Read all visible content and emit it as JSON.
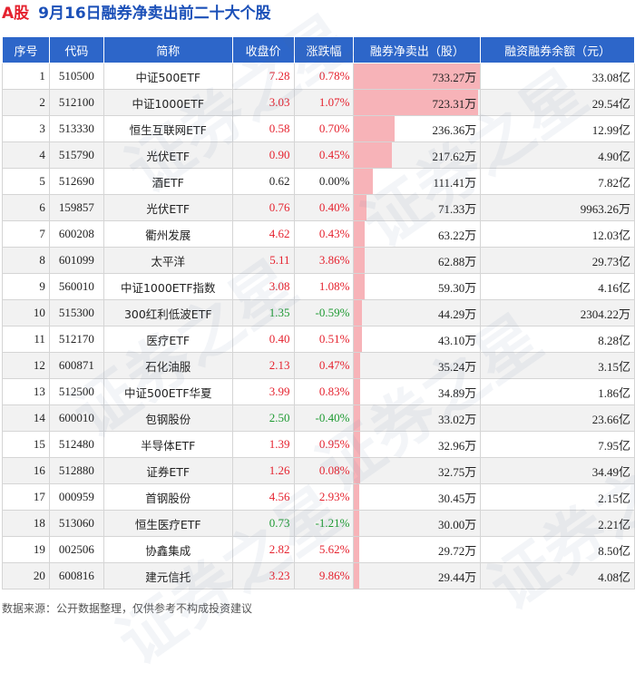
{
  "title": {
    "prefix": "A股",
    "main": "9月16日融券净卖出前二十大个股"
  },
  "headers": [
    "序号",
    "代码",
    "简称",
    "收盘价",
    "涨跌幅",
    "融券净卖出（股）",
    "融资融券余额（元）"
  ],
  "colors": {
    "header_bg": "#2d66c9",
    "up": "#e5222e",
    "down": "#1e9a32",
    "bar": "#f7b3b8",
    "title_prefix": "#e5222e",
    "title_main": "#1b50b8"
  },
  "watermark": "证券之星",
  "rows": [
    {
      "seq": "1",
      "code": "510500",
      "name": "中证500ETF",
      "close": "7.28",
      "chg": "0.78%",
      "dir": "up",
      "net_sell": "733.27万",
      "net_sell_value": 733.27,
      "balance": "33.08亿"
    },
    {
      "seq": "2",
      "code": "512100",
      "name": "中证1000ETF",
      "close": "3.03",
      "chg": "1.07%",
      "dir": "up",
      "net_sell": "723.31万",
      "net_sell_value": 723.31,
      "balance": "29.54亿"
    },
    {
      "seq": "3",
      "code": "513330",
      "name": "恒生互联网ETF",
      "close": "0.58",
      "chg": "0.70%",
      "dir": "up",
      "net_sell": "236.36万",
      "net_sell_value": 236.36,
      "balance": "12.99亿"
    },
    {
      "seq": "4",
      "code": "515790",
      "name": "光伏ETF",
      "close": "0.90",
      "chg": "0.45%",
      "dir": "up",
      "net_sell": "217.62万",
      "net_sell_value": 217.62,
      "balance": "4.90亿"
    },
    {
      "seq": "5",
      "code": "512690",
      "name": "酒ETF",
      "close": "0.62",
      "chg": "0.00%",
      "dir": "flat",
      "net_sell": "111.41万",
      "net_sell_value": 111.41,
      "balance": "7.82亿"
    },
    {
      "seq": "6",
      "code": "159857",
      "name": "光伏ETF",
      "close": "0.76",
      "chg": "0.40%",
      "dir": "up",
      "net_sell": "71.33万",
      "net_sell_value": 71.33,
      "balance": "9963.26万"
    },
    {
      "seq": "7",
      "code": "600208",
      "name": "衢州发展",
      "close": "4.62",
      "chg": "0.43%",
      "dir": "up",
      "net_sell": "63.22万",
      "net_sell_value": 63.22,
      "balance": "12.03亿"
    },
    {
      "seq": "8",
      "code": "601099",
      "name": "太平洋",
      "close": "5.11",
      "chg": "3.86%",
      "dir": "up",
      "net_sell": "62.88万",
      "net_sell_value": 62.88,
      "balance": "29.73亿"
    },
    {
      "seq": "9",
      "code": "560010",
      "name": "中证1000ETF指数",
      "close": "3.08",
      "chg": "1.08%",
      "dir": "up",
      "net_sell": "59.30万",
      "net_sell_value": 59.3,
      "balance": "4.16亿"
    },
    {
      "seq": "10",
      "code": "515300",
      "name": "300红利低波ETF",
      "close": "1.35",
      "chg": "-0.59%",
      "dir": "down",
      "net_sell": "44.29万",
      "net_sell_value": 44.29,
      "balance": "2304.22万"
    },
    {
      "seq": "11",
      "code": "512170",
      "name": "医疗ETF",
      "close": "0.40",
      "chg": "0.51%",
      "dir": "up",
      "net_sell": "43.10万",
      "net_sell_value": 43.1,
      "balance": "8.28亿"
    },
    {
      "seq": "12",
      "code": "600871",
      "name": "石化油服",
      "close": "2.13",
      "chg": "0.47%",
      "dir": "up",
      "net_sell": "35.24万",
      "net_sell_value": 35.24,
      "balance": "3.15亿"
    },
    {
      "seq": "13",
      "code": "512500",
      "name": "中证500ETF华夏",
      "close": "3.99",
      "chg": "0.83%",
      "dir": "up",
      "net_sell": "34.89万",
      "net_sell_value": 34.89,
      "balance": "1.86亿"
    },
    {
      "seq": "14",
      "code": "600010",
      "name": "包钢股份",
      "close": "2.50",
      "chg": "-0.40%",
      "dir": "down",
      "net_sell": "33.02万",
      "net_sell_value": 33.02,
      "balance": "23.66亿"
    },
    {
      "seq": "15",
      "code": "512480",
      "name": "半导体ETF",
      "close": "1.39",
      "chg": "0.95%",
      "dir": "up",
      "net_sell": "32.96万",
      "net_sell_value": 32.96,
      "balance": "7.95亿"
    },
    {
      "seq": "16",
      "code": "512880",
      "name": "证券ETF",
      "close": "1.26",
      "chg": "0.08%",
      "dir": "up",
      "net_sell": "32.75万",
      "net_sell_value": 32.75,
      "balance": "34.49亿"
    },
    {
      "seq": "17",
      "code": "000959",
      "name": "首钢股份",
      "close": "4.56",
      "chg": "2.93%",
      "dir": "up",
      "net_sell": "30.45万",
      "net_sell_value": 30.45,
      "balance": "2.15亿"
    },
    {
      "seq": "18",
      "code": "513060",
      "name": "恒生医疗ETF",
      "close": "0.73",
      "chg": "-1.21%",
      "dir": "down",
      "net_sell": "30.00万",
      "net_sell_value": 30.0,
      "balance": "2.21亿"
    },
    {
      "seq": "19",
      "code": "002506",
      "name": "协鑫集成",
      "close": "2.82",
      "chg": "5.62%",
      "dir": "up",
      "net_sell": "29.72万",
      "net_sell_value": 29.72,
      "balance": "8.50亿"
    },
    {
      "seq": "20",
      "code": "600816",
      "name": "建元信托",
      "close": "3.23",
      "chg": "9.86%",
      "dir": "up",
      "net_sell": "29.44万",
      "net_sell_value": 29.44,
      "balance": "4.08亿"
    }
  ],
  "footer": "数据来源：公开数据整理，仅供参考不构成投资建议"
}
